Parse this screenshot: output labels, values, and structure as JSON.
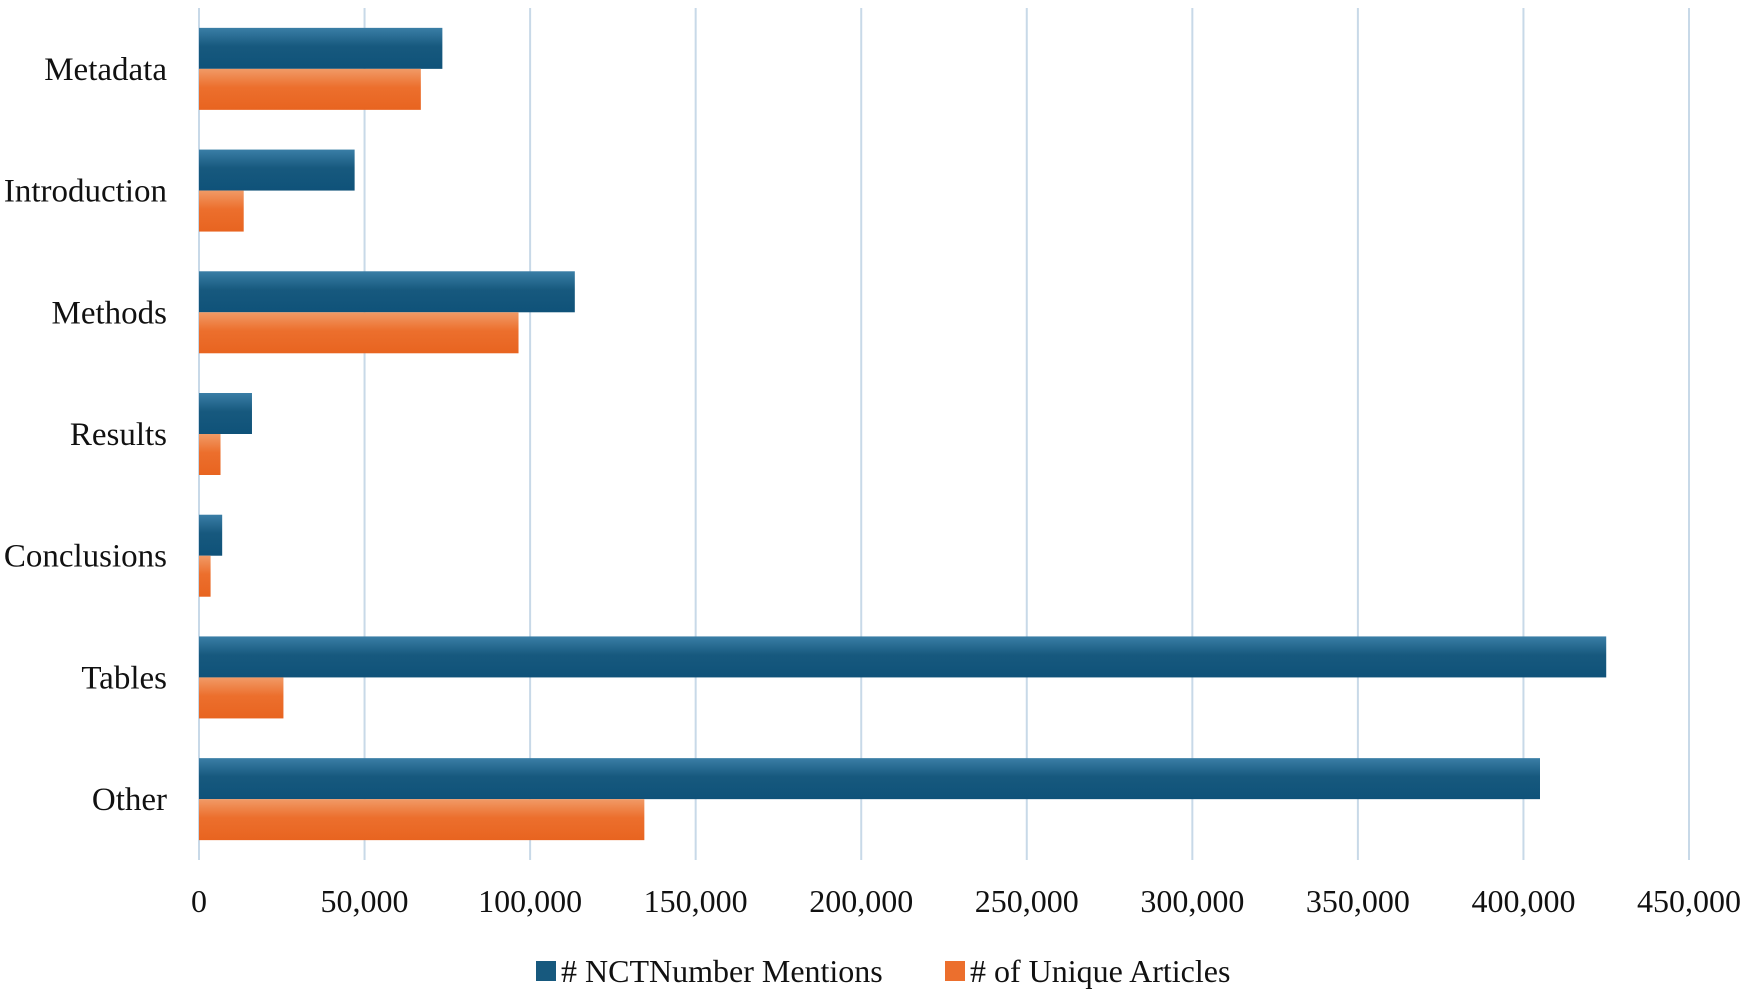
{
  "chart_data": {
    "type": "bar",
    "orientation": "horizontal",
    "title": "",
    "xlabel": "",
    "ylabel": "",
    "categories": [
      "Metadata",
      "Introduction",
      "Methods",
      "Results",
      "Conclusions",
      "Tables",
      "Other"
    ],
    "series": [
      {
        "name": "# NCTNumber Mentions",
        "color": "#17597e",
        "values": [
          73500,
          47000,
          113500,
          16000,
          7000,
          425000,
          405000
        ]
      },
      {
        "name": "# of Unique Articles",
        "color": "#ec6f2d",
        "values": [
          67000,
          13500,
          96500,
          6500,
          3500,
          25500,
          134500
        ]
      }
    ],
    "xlim": [
      0,
      450000
    ],
    "xticks": [
      "0",
      "50,000",
      "100,000",
      "150,000",
      "200,000",
      "250,000",
      "300,000",
      "350,000",
      "400,000",
      "450,000"
    ],
    "grid": true,
    "legend_position": "bottom"
  }
}
